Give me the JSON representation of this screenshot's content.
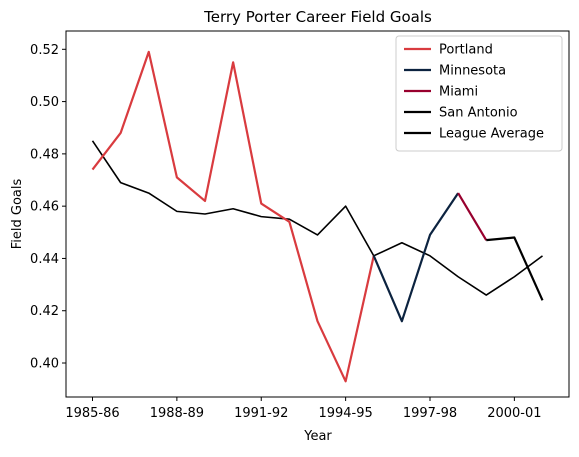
{
  "chart_data": {
    "type": "line",
    "title": "Terry Porter Career Field Goals",
    "xlabel": "Year",
    "ylabel": "Field Goals",
    "x_categories": [
      "1985-86",
      "1986-87",
      "1987-88",
      "1988-89",
      "1989-90",
      "1990-91",
      "1991-92",
      "1992-93",
      "1993-94",
      "1994-95",
      "1995-96",
      "1996-97",
      "1997-98",
      "1998-99",
      "1999-00",
      "2000-01",
      "2001-02"
    ],
    "x_tick_labels": [
      "1985-86",
      "1988-89",
      "1991-92",
      "1994-95",
      "1997-98",
      "2000-01"
    ],
    "x_tick_indices": [
      0,
      3,
      6,
      9,
      12,
      15
    ],
    "ylim": [
      0.387,
      0.527
    ],
    "y_ticks": [
      0.4,
      0.42,
      0.44,
      0.46,
      0.48,
      0.5,
      0.52
    ],
    "y_tick_labels": [
      "0.40",
      "0.42",
      "0.44",
      "0.46",
      "0.48",
      "0.50",
      "0.52"
    ],
    "legend_position": "top-right",
    "series": [
      {
        "name": "Portland",
        "color": "#d93b3f",
        "start_index": 0,
        "values": [
          0.474,
          0.488,
          0.519,
          0.471,
          0.462,
          0.515,
          0.461,
          0.454,
          0.416,
          0.393,
          0.441
        ]
      },
      {
        "name": "Minnesota",
        "color": "#0c2340",
        "start_index": 10,
        "values": [
          0.441,
          0.416,
          0.449,
          0.465
        ]
      },
      {
        "name": "Miami",
        "color": "#98002e",
        "start_index": 13,
        "values": [
          0.465,
          0.447
        ]
      },
      {
        "name": "San Antonio",
        "color": "#000000",
        "start_index": 14,
        "values": [
          0.447,
          0.448,
          0.424
        ]
      },
      {
        "name": "League Average",
        "color": "#000000",
        "start_index": 0,
        "values": [
          0.485,
          0.469,
          0.465,
          0.458,
          0.457,
          0.459,
          0.456,
          0.455,
          0.449,
          0.46,
          0.441,
          0.446,
          0.441,
          0.433,
          0.426,
          0.433,
          0.441
        ]
      }
    ]
  }
}
